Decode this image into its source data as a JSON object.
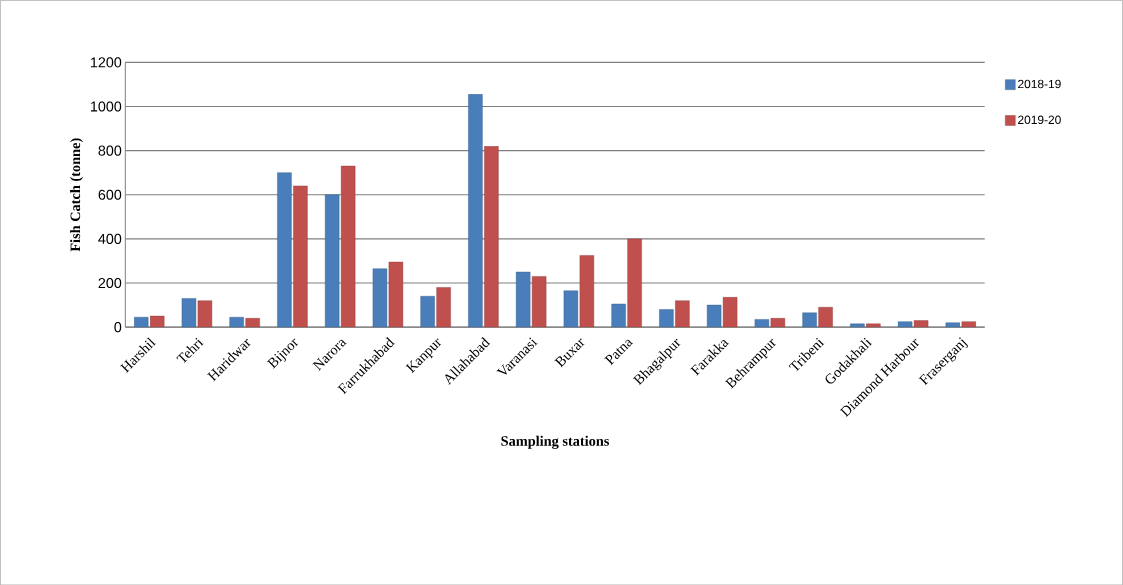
{
  "chart_data": {
    "type": "bar",
    "xlabel": "Sampling stations",
    "ylabel": "Fish Catch (tonne)",
    "categories": [
      "Harshil",
      "Tehri",
      "Haridwar",
      "Bijnor",
      "Narora",
      "Farrukhabad",
      "Kanpur",
      "Allahabad",
      "Varanasi",
      "Buxar",
      "Patna",
      "Bhagalpur",
      "Farakka",
      "Behrampur",
      "Tribeni",
      "Godakhali",
      "Diamond Harbour",
      "Fraserganj"
    ],
    "series": [
      {
        "name": "2018-19",
        "color": "#4a7ebb",
        "values": [
          45,
          130,
          45,
          700,
          600,
          265,
          140,
          1055,
          250,
          165,
          105,
          80,
          100,
          35,
          65,
          15,
          25,
          20
        ]
      },
      {
        "name": "2019-20",
        "color": "#c0504d",
        "values": [
          50,
          120,
          40,
          640,
          730,
          295,
          180,
          820,
          230,
          325,
          400,
          120,
          135,
          40,
          90,
          15,
          30,
          25
        ]
      }
    ],
    "ylim": [
      0,
      1200
    ],
    "yticks": [
      0,
      200,
      400,
      600,
      800,
      1000,
      1200
    ],
    "grid": "y",
    "legend": "right"
  }
}
